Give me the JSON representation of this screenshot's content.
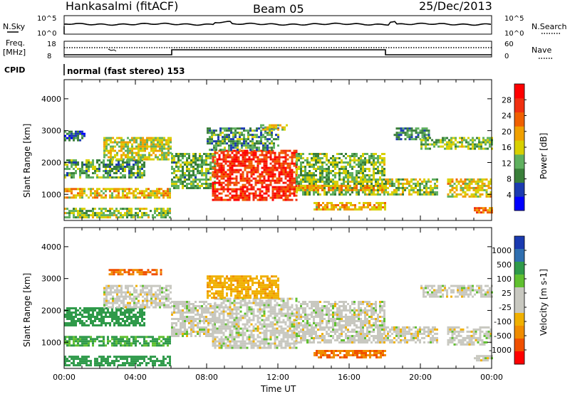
{
  "header": {
    "station": "Hankasalmi (fitACF)",
    "beam": "Beam 05",
    "date": "25/Dec/2013"
  },
  "noise_panel": {
    "left_label": "N.Sky",
    "right_label": "N.Search",
    "ticks_left": [
      "10^5",
      "10^0"
    ],
    "ticks_right": [
      "10^5",
      "10^0"
    ]
  },
  "freq_panel": {
    "left_label": "Freq.",
    "left_unit": "[MHz]",
    "right_label": "Nave",
    "ticks_left": [
      "18",
      "8"
    ],
    "ticks_right": [
      "60",
      "0"
    ]
  },
  "cpid": {
    "label": "CPID",
    "value": "normal (fast stereo) 153"
  },
  "colors": {
    "power": [
      "#0000ff",
      "#1c3bb0",
      "#3a7f3a",
      "#5fb05f",
      "#d8d000",
      "#f0a000",
      "#f06000",
      "#f03010",
      "#ff0000"
    ],
    "velocity": [
      "#ff0000",
      "#f05000",
      "#f08c00",
      "#f0b000",
      "#c8c8c0",
      "#c8c8c0",
      "#60c030",
      "#2f9a4a",
      "#2f6fb0",
      "#1a3ab0"
    ]
  },
  "chart_data": [
    {
      "type": "heatmap",
      "name": "power",
      "xlabel": "",
      "ylabel": "Slant Range [km]",
      "xlim": [
        0,
        24
      ],
      "ylim": [
        180,
        4600
      ],
      "yticks": [
        "1000",
        "2000",
        "3000",
        "4000"
      ],
      "colorbar": {
        "label": "Power [dB]",
        "ticks": [
          "4",
          "8",
          "12",
          "16",
          "20",
          "24",
          "28"
        ],
        "range": [
          0,
          32
        ]
      },
      "regions": [
        {
          "x0": 0.0,
          "x1": 6.0,
          "r0": 280,
          "r1": 580,
          "v": 14
        },
        {
          "x0": 0.0,
          "x1": 6.0,
          "r0": 900,
          "r1": 1200,
          "v": 18
        },
        {
          "x0": 0.0,
          "x1": 4.5,
          "r0": 1550,
          "r1": 2100,
          "v": 11
        },
        {
          "x0": 0.0,
          "x1": 1.2,
          "r0": 2700,
          "r1": 3000,
          "v": 7
        },
        {
          "x0": 2.2,
          "x1": 6.0,
          "r0": 2100,
          "r1": 2800,
          "v": 16
        },
        {
          "x0": 6.0,
          "x1": 8.5,
          "r0": 1200,
          "r1": 2300,
          "v": 12
        },
        {
          "x0": 8.3,
          "x1": 13.0,
          "r0": 800,
          "r1": 2400,
          "v": 27
        },
        {
          "x0": 8.0,
          "x1": 12.0,
          "r0": 2400,
          "r1": 3100,
          "v": 10
        },
        {
          "x0": 11.0,
          "x1": 12.5,
          "r0": 3000,
          "r1": 3200,
          "v": 16
        },
        {
          "x0": 13.0,
          "x1": 18.0,
          "r0": 1000,
          "r1": 2300,
          "v": 13
        },
        {
          "x0": 13.0,
          "x1": 18.0,
          "r0": 1100,
          "r1": 1300,
          "v": 20
        },
        {
          "x0": 14.0,
          "x1": 18.0,
          "r0": 520,
          "r1": 760,
          "v": 19
        },
        {
          "x0": 18.0,
          "x1": 21.0,
          "r0": 1000,
          "r1": 1500,
          "v": 14
        },
        {
          "x0": 18.5,
          "x1": 20.5,
          "r0": 2700,
          "r1": 3100,
          "v": 9
        },
        {
          "x0": 20.0,
          "x1": 24.0,
          "r0": 2400,
          "r1": 2800,
          "v": 13
        },
        {
          "x0": 21.5,
          "x1": 24.0,
          "r0": 900,
          "r1": 1500,
          "v": 17
        },
        {
          "x0": 23.0,
          "x1": 24.0,
          "r0": 400,
          "r1": 600,
          "v": 22
        }
      ]
    },
    {
      "type": "heatmap",
      "name": "velocity",
      "xlabel": "Time UT",
      "ylabel": "Slant Range [km]",
      "xlim": [
        0,
        24
      ],
      "ylim": [
        180,
        4600
      ],
      "xticks": [
        "00:00",
        "04:00",
        "08:00",
        "12:00",
        "16:00",
        "20:00",
        "00:00"
      ],
      "yticks": [
        "1000",
        "2000",
        "3000",
        "4000"
      ],
      "colorbar": {
        "label": "Velocity [m s-1]",
        "ticks": [
          "1000",
          "500",
          "100",
          "25",
          "-25",
          "-100",
          "-500",
          "-1000"
        ]
      },
      "regions": [
        {
          "x0": 0.0,
          "x1": 6.0,
          "r0": 280,
          "r1": 580,
          "v": 150
        },
        {
          "x0": 0.0,
          "x1": 6.0,
          "r0": 900,
          "r1": 1200,
          "v": 110
        },
        {
          "x0": 0.0,
          "x1": 4.5,
          "r0": 1550,
          "r1": 2100,
          "v": 200
        },
        {
          "x0": 2.2,
          "x1": 6.0,
          "r0": 2100,
          "r1": 2800,
          "v": 0
        },
        {
          "x0": 2.5,
          "x1": 5.5,
          "r0": 3150,
          "r1": 3300,
          "v": -300
        },
        {
          "x0": 6.0,
          "x1": 8.5,
          "r0": 1200,
          "r1": 2300,
          "v": 0
        },
        {
          "x0": 8.3,
          "x1": 13.0,
          "r0": 800,
          "r1": 2400,
          "v": 0
        },
        {
          "x0": 8.0,
          "x1": 12.0,
          "r0": 2400,
          "r1": 3100,
          "v": -80
        },
        {
          "x0": 13.0,
          "x1": 18.0,
          "r0": 1000,
          "r1": 2300,
          "v": 0
        },
        {
          "x0": 14.0,
          "x1": 18.0,
          "r0": 520,
          "r1": 760,
          "v": -300
        },
        {
          "x0": 18.0,
          "x1": 21.0,
          "r0": 1000,
          "r1": 1500,
          "v": 0
        },
        {
          "x0": 20.0,
          "x1": 24.0,
          "r0": 2400,
          "r1": 2800,
          "v": 0
        },
        {
          "x0": 21.5,
          "x1": 24.0,
          "r0": 900,
          "r1": 1500,
          "v": 0
        },
        {
          "x0": 23.0,
          "x1": 24.0,
          "r0": 400,
          "r1": 600,
          "v": 0
        }
      ]
    }
  ]
}
